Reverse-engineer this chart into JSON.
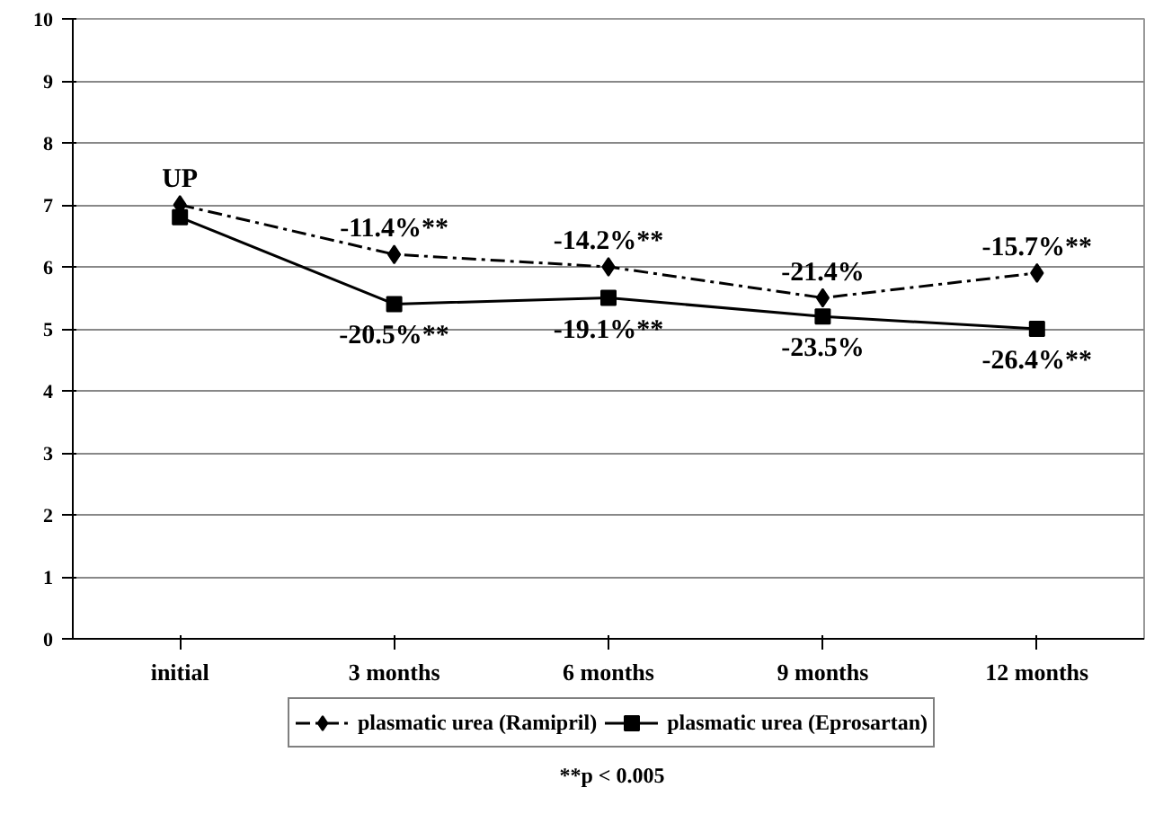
{
  "chart_data": {
    "type": "line",
    "categories": [
      "initial",
      "3 months",
      "6 months",
      "9 months",
      "12 months"
    ],
    "series": [
      {
        "name": "plasmatic urea (Ramipril)",
        "color": "#000000",
        "values": [
          7.0,
          6.2,
          6.0,
          5.5,
          5.9
        ],
        "marker": "diamond",
        "line_style": "dashed"
      },
      {
        "name": "plasmatic urea (Eprosartan)",
        "color": "#000000",
        "values": [
          6.8,
          5.4,
          5.5,
          5.2,
          5.0
        ],
        "marker": "square",
        "line_style": "solid"
      }
    ],
    "ylim": [
      0,
      10
    ],
    "yticks": [
      0,
      1,
      2,
      3,
      4,
      5,
      6,
      7,
      8,
      9,
      10
    ],
    "grid": "y",
    "legend": "bottom",
    "annotations": [
      {
        "text": "UP",
        "x": "initial",
        "y": 7.0
      },
      {
        "text": "-11.4%**",
        "x": "3 months",
        "y": 6.2
      },
      {
        "text": "-14.2%**",
        "x": "6 months",
        "y": 6.0
      },
      {
        "text": "-21.4%",
        "x": "9 months",
        "y": 5.5
      },
      {
        "text": "-15.7%**",
        "x": "12 months",
        "y": 5.9
      },
      {
        "text": "-20.5%**",
        "x": "3 months",
        "y": 5.4
      },
      {
        "text": "-19.1%**",
        "x": "6 months",
        "y": 5.5
      },
      {
        "text": "-23.5%",
        "x": "9 months",
        "y": 5.2
      },
      {
        "text": "-26.4%**",
        "x": "12 months",
        "y": 5.0
      },
      "**p < 0.005"
    ]
  }
}
